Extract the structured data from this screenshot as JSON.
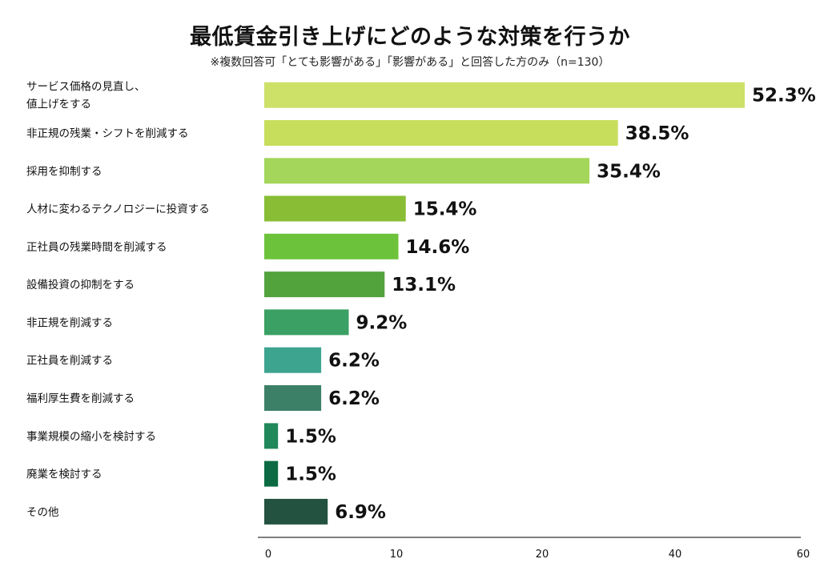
{
  "chart_data": {
    "type": "bar",
    "orientation": "horizontal",
    "title": "最低賃金引き上げにどのような対策を行うか",
    "subtitle": "※複数回答可「とても影響がある」「影響がある」と回答した方のみ（n=130）",
    "categories": [
      [
        "サービス価格の見直し、",
        "値上げをする"
      ],
      [
        "非正規の残業・シフトを削減する"
      ],
      [
        "採用を抑制する"
      ],
      [
        "人材に変わるテクノロジーに投資する"
      ],
      [
        "正社員の残業時間を削減する"
      ],
      [
        "設備投資の抑制をする"
      ],
      [
        "非正規を削減する"
      ],
      [
        "正社員を削減する"
      ],
      [
        "福利厚生費を削減する"
      ],
      [
        "事業規模の縮小を検討する"
      ],
      [
        "廃業を検討する"
      ],
      [
        "その他"
      ]
    ],
    "values": [
      52.3,
      38.5,
      35.4,
      15.4,
      14.6,
      13.1,
      9.2,
      6.2,
      6.2,
      1.5,
      1.5,
      6.9
    ],
    "value_labels": [
      "52.3%",
      "38.5%",
      "35.4%",
      "15.4%",
      "14.6%",
      "13.1%",
      "9.2%",
      "6.2%",
      "6.2%",
      "1.5%",
      "1.5%",
      "6.9%"
    ],
    "colors": [
      "#cde068",
      "#c6de5c",
      "#a3d65a",
      "#88bd35",
      "#6cc33b",
      "#53a33d",
      "#3aa063",
      "#3da490",
      "#3c8067",
      "#20885a",
      "#0b6a42",
      "#235240"
    ],
    "xlim": [
      0,
      60
    ],
    "x_ticks": [
      0,
      10,
      20,
      40,
      60
    ],
    "xlabel": "",
    "ylabel": "",
    "grid": false,
    "legend": "none"
  }
}
